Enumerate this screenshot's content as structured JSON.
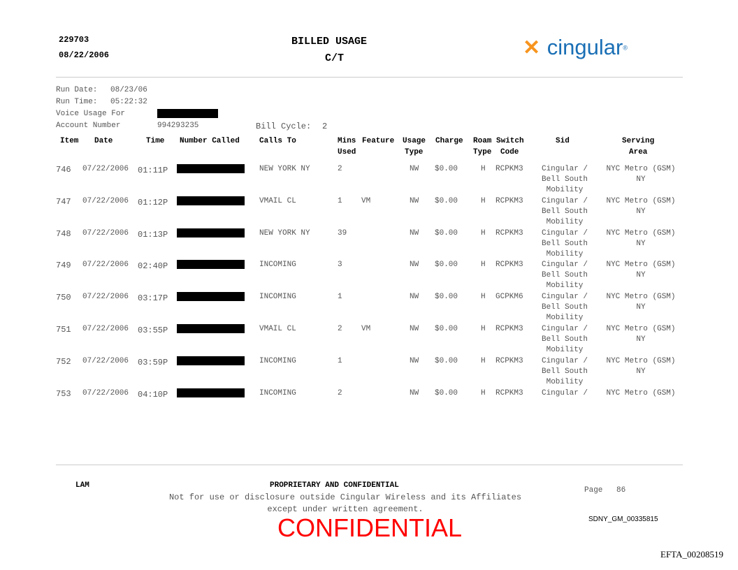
{
  "header": {
    "id": "229703",
    "date": "08/22/2006",
    "title": "BILLED USAGE",
    "subtitle": "C/T",
    "logo_text": "cingular",
    "brand_color": "#1a6fb5",
    "logo_mark_color": "#f7941d"
  },
  "info": {
    "run_date_label": "Run Date:",
    "run_date": "08/23/06",
    "run_time_label": "Run Time:",
    "run_time": "05:22:32",
    "voice_usage_label": "Voice Usage For",
    "account_label": "Account Number",
    "account": "994293235",
    "bill_cycle_label": "Bill Cycle:",
    "bill_cycle": "2"
  },
  "columns": {
    "item": "Item",
    "date": "Date",
    "time": "Time",
    "number": "Number Called",
    "calls_to": "Calls To",
    "mins1": "Mins",
    "mins2": "Used",
    "feature": "Feature",
    "usage1": "Usage",
    "usage2": "Type",
    "charge": "Charge",
    "roam1": "Roam",
    "roam2": "Type",
    "switch1": "Switch",
    "switch2": "Code",
    "sid": "Sid",
    "serving1": "Serving",
    "serving2": "Area"
  },
  "rows": [
    {
      "item": "746",
      "date": "07/22/2006",
      "time": "01:11P",
      "calls_to": "NEW YORK NY",
      "mins": "2",
      "feature": "",
      "usage": "NW",
      "charge": "$0.00",
      "roam": "H",
      "switch": "RCPKM3",
      "sid1": "Cingular /",
      "sid2": "Bell South",
      "sid3": "Mobility",
      "area1": "NYC Metro (GSM)",
      "area2": "NY"
    },
    {
      "item": "747",
      "date": "07/22/2006",
      "time": "01:12P",
      "calls_to": "VMAIL CL",
      "mins": "1",
      "feature": "VM",
      "usage": "NW",
      "charge": "$0.00",
      "roam": "H",
      "switch": "RCPKM3",
      "sid1": "Cingular /",
      "sid2": "Bell South",
      "sid3": "Mobility",
      "area1": "NYC Metro (GSM)",
      "area2": "NY"
    },
    {
      "item": "748",
      "date": "07/22/2006",
      "time": "01:13P",
      "calls_to": "NEW YORK NY",
      "mins": "39",
      "feature": "",
      "usage": "NW",
      "charge": "$0.00",
      "roam": "H",
      "switch": "RCPKM3",
      "sid1": "Cingular /",
      "sid2": "Bell South",
      "sid3": "Mobility",
      "area1": "NYC Metro (GSM)",
      "area2": "NY"
    },
    {
      "item": "749",
      "date": "07/22/2006",
      "time": "02:40P",
      "calls_to": "INCOMING",
      "mins": "3",
      "feature": "",
      "usage": "NW",
      "charge": "$0.00",
      "roam": "H",
      "switch": "RCPKM3",
      "sid1": "Cingular /",
      "sid2": "Bell South",
      "sid3": "Mobility",
      "area1": "NYC Metro (GSM)",
      "area2": "NY"
    },
    {
      "item": "750",
      "date": "07/22/2006",
      "time": "03:17P",
      "calls_to": "INCOMING",
      "mins": "1",
      "feature": "",
      "usage": "NW",
      "charge": "$0.00",
      "roam": "H",
      "switch": "GCPKM6",
      "sid1": "Cingular /",
      "sid2": "Bell South",
      "sid3": "Mobility",
      "area1": "NYC Metro (GSM)",
      "area2": "NY"
    },
    {
      "item": "751",
      "date": "07/22/2006",
      "time": "03:55P",
      "calls_to": "VMAIL CL",
      "mins": "2",
      "feature": "VM",
      "usage": "NW",
      "charge": "$0.00",
      "roam": "H",
      "switch": "RCPKM3",
      "sid1": "Cingular /",
      "sid2": "Bell South",
      "sid3": "Mobility",
      "area1": "NYC Metro (GSM)",
      "area2": "NY"
    },
    {
      "item": "752",
      "date": "07/22/2006",
      "time": "03:59P",
      "calls_to": "INCOMING",
      "mins": "1",
      "feature": "",
      "usage": "NW",
      "charge": "$0.00",
      "roam": "H",
      "switch": "RCPKM3",
      "sid1": "Cingular /",
      "sid2": "Bell South",
      "sid3": "Mobility",
      "area1": "NYC Metro (GSM)",
      "area2": "NY"
    },
    {
      "item": "753",
      "date": "07/22/2006",
      "time": "04:10P",
      "calls_to": "INCOMING",
      "mins": "2",
      "feature": "",
      "usage": "NW",
      "charge": "$0.00",
      "roam": "H",
      "switch": "RCPKM3",
      "sid1": "Cingular /",
      "sid2": "",
      "sid3": "",
      "area1": "NYC Metro (GSM)",
      "area2": ""
    }
  ],
  "footer": {
    "left": "LAM",
    "title": "PROPRIETARY AND CONFIDENTIAL",
    "line1": "Not for use or disclosure outside Cingular Wireless and its Affiliates",
    "line2": "except under written agreement.",
    "page_label": "Page",
    "page": "86",
    "stamp": "CONFIDENTIAL",
    "stamp_color": "#ff0000",
    "bates": "SDNY_GM_00335815",
    "efta": "EFTA_00208519"
  }
}
